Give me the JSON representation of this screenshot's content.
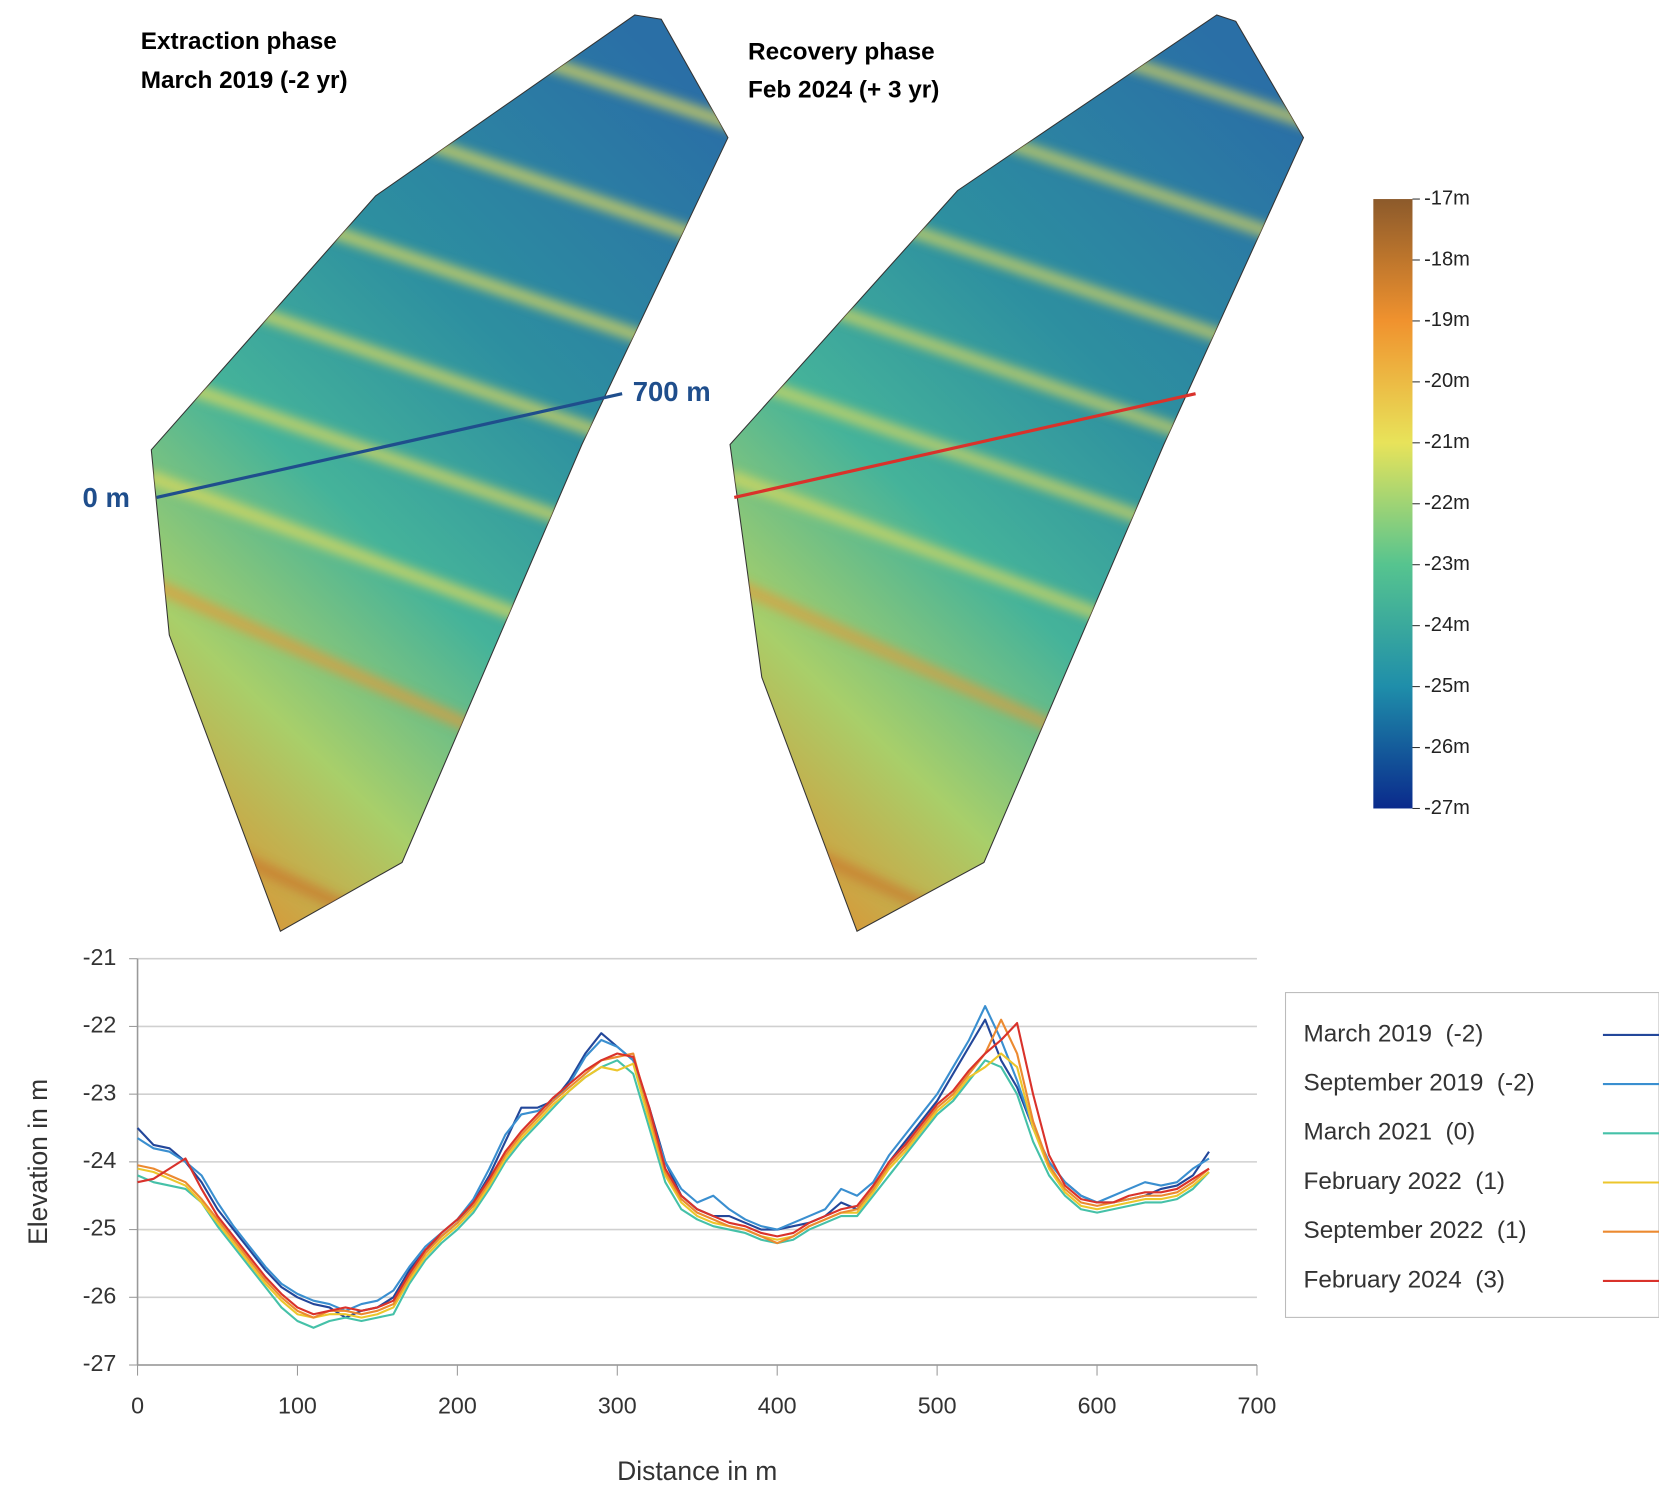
{
  "maps": [
    {
      "title": [
        "Extraction phase",
        "March 2019 (-2 yr)"
      ],
      "transect_start": "0 m",
      "transect_end": "700 m"
    },
    {
      "title": [
        "Recovery phase",
        "Feb 2024 (+ 3 yr)"
      ]
    }
  ],
  "colorbar": {
    "lim": [
      -27,
      -17
    ],
    "ticks": [
      {
        "value": -17,
        "label": "-17m"
      },
      {
        "value": -18,
        "label": "-18m"
      },
      {
        "value": -19,
        "label": "-19m"
      },
      {
        "value": -20,
        "label": "-20m"
      },
      {
        "value": -21,
        "label": "-21m"
      },
      {
        "value": -22,
        "label": "-22m"
      },
      {
        "value": -23,
        "label": "-23m"
      },
      {
        "value": -24,
        "label": "-24m"
      },
      {
        "value": -25,
        "label": "-25m"
      },
      {
        "value": -26,
        "label": "-26m"
      },
      {
        "value": -27,
        "label": "-27m"
      }
    ]
  },
  "chart_data": {
    "type": "line",
    "x_label": "Distance in m",
    "y_label": "Elevation in m",
    "xlim": [
      0,
      700
    ],
    "xticks": [
      0,
      100,
      200,
      300,
      400,
      500,
      600,
      700
    ],
    "ylim": [
      -27,
      -21
    ],
    "yticks": [
      -21,
      -22,
      -23,
      -24,
      -25,
      -26,
      -27
    ],
    "grid": true,
    "legend": "right",
    "x": [
      0,
      10,
      20,
      30,
      40,
      50,
      60,
      70,
      80,
      90,
      100,
      110,
      120,
      130,
      140,
      150,
      160,
      170,
      180,
      190,
      200,
      210,
      220,
      230,
      240,
      250,
      260,
      270,
      280,
      290,
      300,
      310,
      320,
      330,
      340,
      350,
      360,
      370,
      380,
      390,
      400,
      410,
      420,
      430,
      440,
      450,
      460,
      470,
      480,
      490,
      500,
      510,
      520,
      530,
      540,
      550,
      560,
      570,
      580,
      590,
      600,
      610,
      620,
      630,
      640,
      650,
      660,
      670
    ],
    "series": [
      {
        "name": "March 2019  (-2)",
        "color": "#23479a",
        "values": [
          -23.5,
          -23.75,
          -23.8,
          -24.0,
          -24.3,
          -24.7,
          -25.0,
          -25.3,
          -25.6,
          -25.85,
          -26.0,
          -26.1,
          -26.15,
          -26.3,
          -26.2,
          -26.15,
          -26.0,
          -25.6,
          -25.3,
          -25.1,
          -24.9,
          -24.6,
          -24.2,
          -23.7,
          -23.2,
          -23.2,
          -23.1,
          -22.8,
          -22.4,
          -22.1,
          -22.3,
          -22.5,
          -23.2,
          -24.0,
          -24.5,
          -24.7,
          -24.8,
          -24.8,
          -24.9,
          -25.0,
          -25.0,
          -24.95,
          -24.9,
          -24.8,
          -24.6,
          -24.7,
          -24.4,
          -24.0,
          -23.7,
          -23.4,
          -23.1,
          -22.7,
          -22.3,
          -21.9,
          -22.5,
          -22.9,
          -23.5,
          -24.0,
          -24.3,
          -24.5,
          -24.6,
          -24.6,
          -24.55,
          -24.5,
          -24.4,
          -24.35,
          -24.2,
          -23.85
        ]
      },
      {
        "name": "September 2019  (-2)",
        "color": "#3a8fd0",
        "values": [
          -23.65,
          -23.8,
          -23.85,
          -24.0,
          -24.2,
          -24.6,
          -24.95,
          -25.25,
          -25.55,
          -25.8,
          -25.95,
          -26.05,
          -26.1,
          -26.2,
          -26.1,
          -26.05,
          -25.9,
          -25.55,
          -25.25,
          -25.05,
          -24.85,
          -24.55,
          -24.1,
          -23.6,
          -23.3,
          -23.25,
          -23.1,
          -22.85,
          -22.45,
          -22.2,
          -22.3,
          -22.5,
          -23.3,
          -24.0,
          -24.4,
          -24.6,
          -24.5,
          -24.7,
          -24.85,
          -24.95,
          -25.0,
          -24.9,
          -24.8,
          -24.7,
          -24.4,
          -24.5,
          -24.3,
          -23.9,
          -23.6,
          -23.3,
          -23.0,
          -22.6,
          -22.2,
          -21.7,
          -22.2,
          -22.8,
          -23.5,
          -24.0,
          -24.3,
          -24.5,
          -24.6,
          -24.5,
          -24.4,
          -24.3,
          -24.35,
          -24.3,
          -24.1,
          -23.95
        ]
      },
      {
        "name": "March 2021  (0)",
        "color": "#45c1a8",
        "values": [
          -24.2,
          -24.3,
          -24.35,
          -24.4,
          -24.6,
          -24.95,
          -25.25,
          -25.55,
          -25.85,
          -26.15,
          -26.35,
          -26.45,
          -26.35,
          -26.3,
          -26.35,
          -26.3,
          -26.25,
          -25.8,
          -25.45,
          -25.2,
          -25.0,
          -24.75,
          -24.4,
          -24.0,
          -23.7,
          -23.45,
          -23.2,
          -22.95,
          -22.75,
          -22.6,
          -22.5,
          -22.7,
          -23.5,
          -24.3,
          -24.7,
          -24.85,
          -24.95,
          -25.0,
          -25.05,
          -25.15,
          -25.2,
          -25.15,
          -25.0,
          -24.9,
          -24.8,
          -24.8,
          -24.5,
          -24.2,
          -23.9,
          -23.6,
          -23.3,
          -23.1,
          -22.8,
          -22.5,
          -22.6,
          -23.0,
          -23.7,
          -24.2,
          -24.5,
          -24.7,
          -24.75,
          -24.7,
          -24.65,
          -24.6,
          -24.6,
          -24.55,
          -24.4,
          -24.15
        ]
      },
      {
        "name": "February 2022  (1)",
        "color": "#ecc62c",
        "values": [
          -24.1,
          -24.15,
          -24.25,
          -24.35,
          -24.6,
          -24.9,
          -25.2,
          -25.5,
          -25.8,
          -26.05,
          -26.25,
          -26.3,
          -26.25,
          -26.25,
          -26.3,
          -26.25,
          -26.15,
          -25.75,
          -25.4,
          -25.15,
          -24.95,
          -24.7,
          -24.35,
          -23.95,
          -23.65,
          -23.4,
          -23.15,
          -22.95,
          -22.75,
          -22.6,
          -22.65,
          -22.55,
          -23.4,
          -24.2,
          -24.6,
          -24.8,
          -24.9,
          -24.95,
          -25.0,
          -25.1,
          -25.15,
          -25.1,
          -24.95,
          -24.85,
          -24.75,
          -24.75,
          -24.45,
          -24.1,
          -23.85,
          -23.55,
          -23.25,
          -23.05,
          -22.75,
          -22.6,
          -22.4,
          -22.6,
          -23.5,
          -24.1,
          -24.45,
          -24.65,
          -24.7,
          -24.65,
          -24.6,
          -24.55,
          -24.55,
          -24.5,
          -24.35,
          -24.15
        ]
      },
      {
        "name": "September 2022  (1)",
        "color": "#ec8a30",
        "values": [
          -24.05,
          -24.1,
          -24.2,
          -24.3,
          -24.55,
          -24.85,
          -25.15,
          -25.45,
          -25.75,
          -26.0,
          -26.2,
          -26.3,
          -26.2,
          -26.2,
          -26.25,
          -26.2,
          -26.1,
          -25.7,
          -25.35,
          -25.1,
          -24.9,
          -24.65,
          -24.3,
          -23.9,
          -23.6,
          -23.35,
          -23.1,
          -22.9,
          -22.7,
          -22.5,
          -22.45,
          -22.4,
          -23.3,
          -24.15,
          -24.55,
          -24.75,
          -24.85,
          -24.95,
          -25.0,
          -25.1,
          -25.2,
          -25.1,
          -24.95,
          -24.85,
          -24.75,
          -24.7,
          -24.4,
          -24.05,
          -23.8,
          -23.5,
          -23.2,
          -23.0,
          -22.7,
          -22.4,
          -21.9,
          -22.4,
          -23.4,
          -24.05,
          -24.4,
          -24.6,
          -24.65,
          -24.6,
          -24.55,
          -24.5,
          -24.5,
          -24.45,
          -24.3,
          -24.1
        ]
      },
      {
        "name": "February 2024  (3)",
        "color": "#d9322b",
        "values": [
          -24.3,
          -24.25,
          -24.1,
          -23.95,
          -24.4,
          -24.8,
          -25.1,
          -25.4,
          -25.7,
          -25.95,
          -26.15,
          -26.25,
          -26.2,
          -26.15,
          -26.2,
          -26.15,
          -26.05,
          -25.65,
          -25.3,
          -25.05,
          -24.85,
          -24.6,
          -24.25,
          -23.85,
          -23.55,
          -23.3,
          -23.05,
          -22.85,
          -22.65,
          -22.5,
          -22.4,
          -22.45,
          -23.2,
          -24.1,
          -24.5,
          -24.7,
          -24.8,
          -24.9,
          -24.95,
          -25.05,
          -25.1,
          -25.05,
          -24.9,
          -24.8,
          -24.7,
          -24.65,
          -24.35,
          -24.0,
          -23.75,
          -23.45,
          -23.15,
          -22.95,
          -22.65,
          -22.4,
          -22.2,
          -21.95,
          -23.0,
          -23.9,
          -24.35,
          -24.55,
          -24.6,
          -24.6,
          -24.5,
          -24.45,
          -24.45,
          -24.4,
          -24.25,
          -24.1
        ]
      }
    ]
  }
}
